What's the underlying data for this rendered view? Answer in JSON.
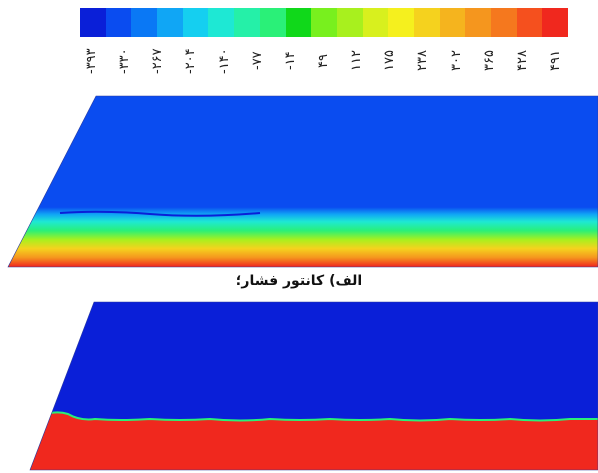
{
  "colorbar": {
    "colors": [
      "#0a1fd8",
      "#0a4cf0",
      "#0a78f5",
      "#10a6f5",
      "#15cff0",
      "#1ee8d4",
      "#25f0a8",
      "#2af078",
      "#10d81a",
      "#78f01e",
      "#a8f01e",
      "#d8f01e",
      "#f5f01e",
      "#f5d21e",
      "#f5b41e",
      "#f5961e",
      "#f5781e",
      "#f5501e",
      "#f0281e"
    ],
    "tick_labels": [
      "-۳۹۳",
      "-۳۳۰",
      "-۲۶۷",
      "-۲۰۴",
      "-۱۴۰",
      "-۷۷",
      "-۱۴",
      "۴۹",
      "۱۱۲",
      "۱۷۵",
      "۲۳۸",
      "۳۰۲",
      "۳۶۵",
      "۴۲۸",
      "۴۹۱"
    ]
  },
  "panel_a": {
    "caption": "الف) کانتور فشار؛",
    "colors": {
      "base": "#0a4cf0",
      "deep": "#0a1fd8",
      "b1": "#10a6f5",
      "b2": "#1ee8d4",
      "b3": "#2af078",
      "b4": "#a8f01e",
      "b5": "#f5d21e",
      "b6": "#f5961e",
      "b7": "#f0281e"
    }
  },
  "panel_b": {
    "colors": {
      "top": "#0a1fd8",
      "bottom": "#f0281e",
      "edge": "#2af078"
    }
  }
}
